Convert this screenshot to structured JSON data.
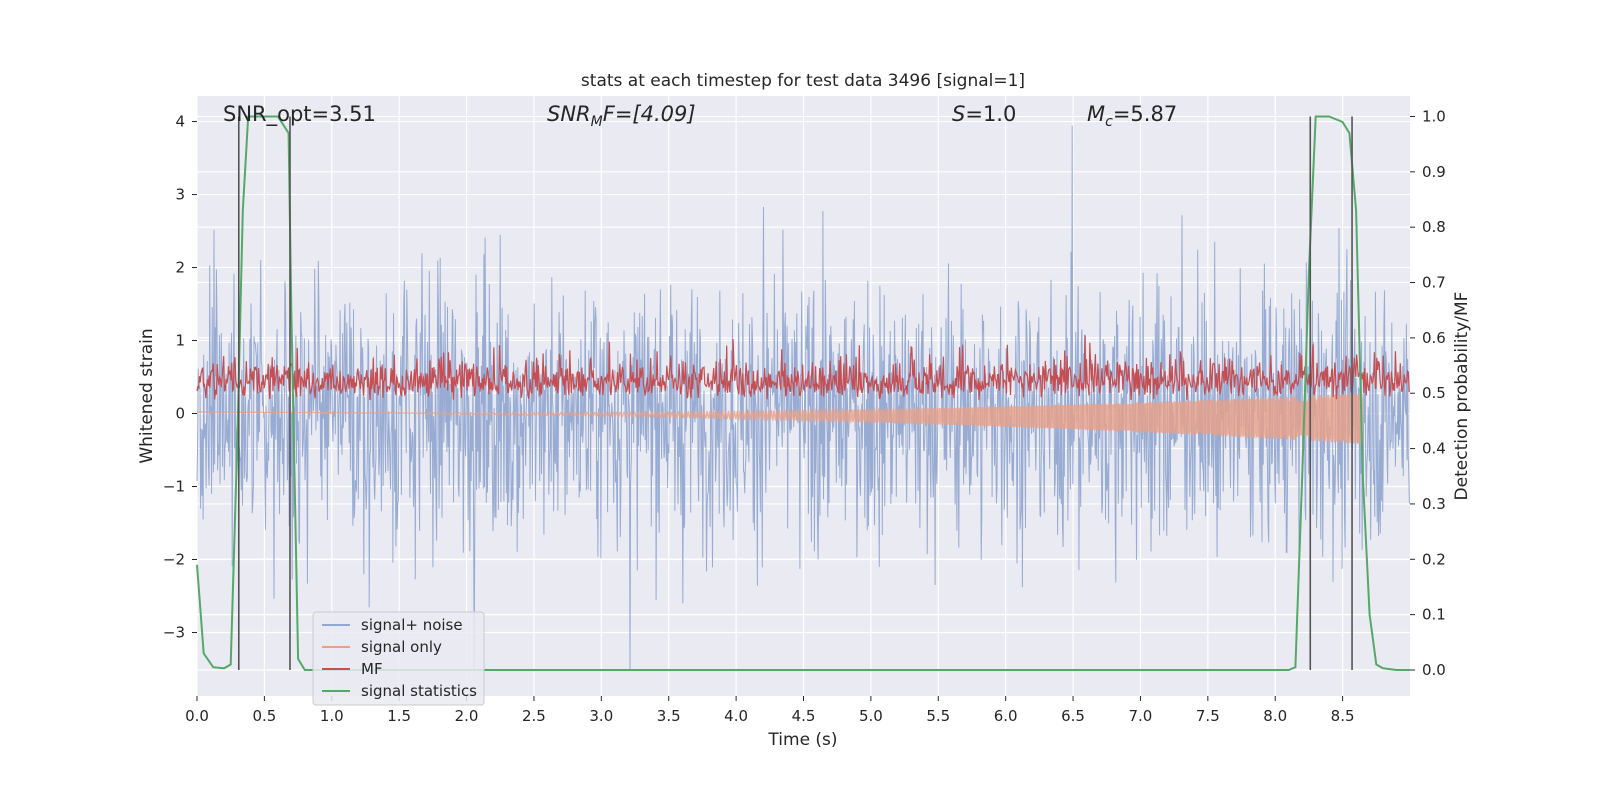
{
  "chart_data": {
    "type": "line",
    "title": "stats at each timestep for test data 3496 [signal=1]",
    "xlabel": "Time (s)",
    "ylabel": "Whitened strain",
    "ylabel_right": "Detection probability/MF",
    "xlim": [
      0.0,
      9.0
    ],
    "ylim": [
      -3.87,
      4.35
    ],
    "ylim_right": [
      -0.047,
      1.037
    ],
    "x_ticks": [
      "0.0",
      "0.5",
      "1.0",
      "1.5",
      "2.0",
      "2.5",
      "3.0",
      "3.5",
      "4.0",
      "4.5",
      "5.0",
      "5.5",
      "6.0",
      "6.5",
      "7.0",
      "7.5",
      "8.0",
      "8.5"
    ],
    "y_ticks": [
      "−3",
      "−2",
      "−1",
      "0",
      "1",
      "2",
      "3",
      "4"
    ],
    "y_ticks_right": [
      "0.0",
      "0.1",
      "0.2",
      "0.3",
      "0.4",
      "0.5",
      "0.6",
      "0.7",
      "0.8",
      "0.9",
      "1.0"
    ],
    "grid": true,
    "legend_position": "lower-left",
    "annotations": {
      "snr_opt": "SNR_opt=3.51",
      "snr_mf_main": "SNR",
      "snr_mf_sub": "M",
      "snr_mf_rest": "F=[4.09]",
      "s_main": "S",
      "s_rest": "=1.0",
      "mc_main": "M",
      "mc_sub": "c",
      "mc_rest": "=5.87"
    },
    "series": [
      {
        "name": "signal+ noise",
        "color": "#92a8d1",
        "style": "noise band",
        "typical_range": [
          -1.7,
          1.7
        ],
        "peak_range": [
          -3.5,
          4.0
        ],
        "x_range": [
          0.0,
          9.0
        ]
      },
      {
        "name": "signal only",
        "color": "#e8a088",
        "style": "chirp",
        "x_range": [
          0.0,
          8.65
        ],
        "amplitude_start": 0.0,
        "amplitude_end": 0.35
      },
      {
        "name": "MF",
        "color": "#c44e52",
        "axis": "right",
        "style": "noisy band",
        "baseline": 0.5,
        "typical_range": [
          0.47,
          0.57
        ],
        "peak": 0.61,
        "x_range": [
          0.0,
          9.0
        ]
      },
      {
        "name": "signal statistics",
        "color": "#55a868",
        "axis": "right",
        "x": [
          0.0,
          0.05,
          0.12,
          0.2,
          0.25,
          0.3,
          0.34,
          0.38,
          0.42,
          0.5,
          0.6,
          0.68,
          0.7,
          0.75,
          0.8,
          0.9,
          1.0,
          2.0,
          4.0,
          6.0,
          7.0,
          8.0,
          8.1,
          8.15,
          8.2,
          8.25,
          8.3,
          8.4,
          8.5,
          8.55,
          8.6,
          8.65,
          8.7,
          8.75,
          8.8,
          8.9,
          9.0
        ],
        "y": [
          0.19,
          0.03,
          0.005,
          0.003,
          0.01,
          0.42,
          0.83,
          1.0,
          1.0,
          1.0,
          1.0,
          0.97,
          0.65,
          0.02,
          0.0,
          0.0,
          0.0,
          0.0,
          0.0,
          0.0,
          0.0,
          0.0,
          0.0,
          0.005,
          0.35,
          0.72,
          1.0,
          1.0,
          0.99,
          0.97,
          0.83,
          0.35,
          0.1,
          0.01,
          0.003,
          0.0,
          0.0
        ]
      }
    ],
    "vertical_markers_s": [
      0.31,
      0.69,
      8.26,
      8.57
    ],
    "marker_color": "#555555"
  }
}
